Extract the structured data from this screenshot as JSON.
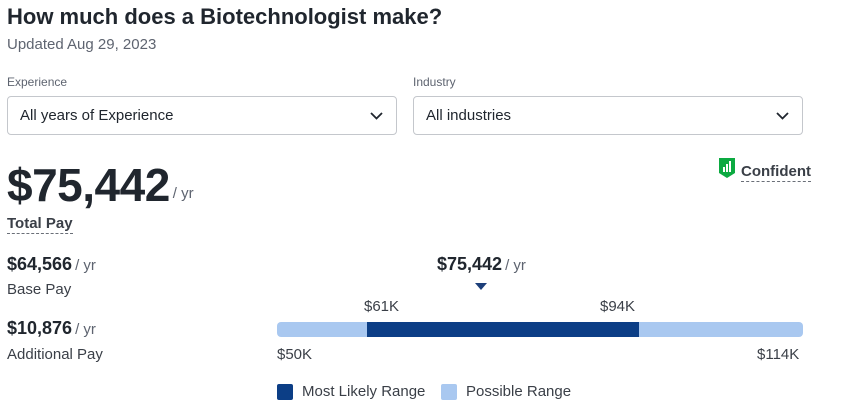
{
  "header": {
    "title": "How much does a Biotechnologist make?",
    "updated": "Updated Aug 29, 2023"
  },
  "filters": {
    "experience": {
      "label": "Experience",
      "value": "All years of Experience",
      "icon": "chevron-down-icon"
    },
    "industry": {
      "label": "Industry",
      "value": "All industries",
      "icon": "chevron-down-icon"
    }
  },
  "total_pay": {
    "amount": "$75,442",
    "per": "/ yr",
    "label": "Total Pay"
  },
  "confidence": {
    "label": "Confident",
    "icon": "confidence-bars-icon",
    "color": "#0caa41"
  },
  "base_pay": {
    "amount": "$64,566",
    "per": "/ yr",
    "label": "Base Pay"
  },
  "additional_pay": {
    "amount": "$10,876",
    "per": "/ yr",
    "label": "Additional Pay"
  },
  "range": {
    "median_label": "$75,442",
    "median_per": "/ yr",
    "median_value": 75442,
    "likely_low_label": "$61K",
    "likely_high_label": "$94K",
    "likely_low": 61000,
    "likely_high": 94000,
    "min_label": "$50K",
    "max_label": "$114K",
    "min": 50000,
    "max": 114000,
    "likely_color": "#0c3e86",
    "possible_color": "#a9c8f0"
  },
  "legend": {
    "likely": "Most Likely Range",
    "possible": "Possible Range"
  }
}
